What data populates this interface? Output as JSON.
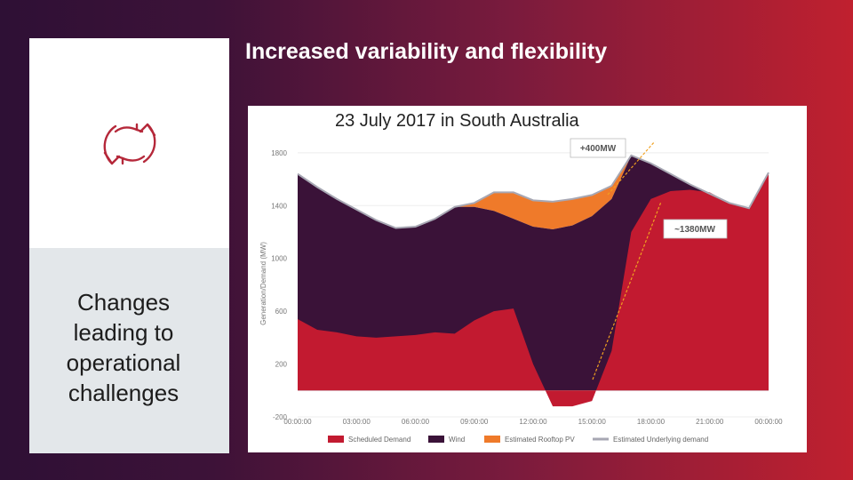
{
  "slide": {
    "title": "Increased variability and flexibility",
    "caption": "Changes\nleading to\noperational\nchallenges",
    "icon": "refresh-cycle-icon",
    "icon_color": "#b5283a"
  },
  "chart_data": {
    "type": "area",
    "subtitle": "23 July 2017 in South Australia",
    "ylabel": "Generation/Demand (MW)",
    "ylim": [
      -200,
      1900
    ],
    "yticks": [
      -200,
      200,
      600,
      1000,
      1400,
      1800
    ],
    "xticks": [
      "00:00:00",
      "03:00:00",
      "06:00:00",
      "09:00:00",
      "12:00:00",
      "15:00:00",
      "18:00:00",
      "21:00:00",
      "00:00:00"
    ],
    "x": [
      "00:00",
      "01:00",
      "02:00",
      "03:00",
      "04:00",
      "05:00",
      "06:00",
      "07:00",
      "08:00",
      "09:00",
      "10:00",
      "11:00",
      "12:00",
      "13:00",
      "14:00",
      "15:00",
      "16:00",
      "17:00",
      "18:00",
      "19:00",
      "20:00",
      "21:00",
      "22:00",
      "23:00",
      "24:00"
    ],
    "series": [
      {
        "name": "Scheduled Demand",
        "color": "#c21a30",
        "values": [
          540,
          460,
          440,
          410,
          400,
          410,
          420,
          440,
          430,
          530,
          600,
          620,
          200,
          -120,
          -120,
          -80,
          300,
          1200,
          1450,
          1510,
          1520,
          1500,
          1420,
          1380,
          1650
        ]
      },
      {
        "name": "Wind",
        "color": "#3a1238",
        "values": [
          1640,
          1540,
          1450,
          1370,
          1290,
          1230,
          1240,
          1300,
          1390,
          1390,
          1360,
          1300,
          1240,
          1220,
          1250,
          1320,
          1450,
          1780,
          1720,
          1640,
          1560,
          1490,
          1420,
          1380,
          1650
        ]
      },
      {
        "name": "Estimated Rooftop PV",
        "color": "#ef7a2a",
        "values": [
          1640,
          1540,
          1450,
          1370,
          1290,
          1230,
          1240,
          1300,
          1390,
          1420,
          1500,
          1500,
          1440,
          1430,
          1450,
          1480,
          1550,
          1780,
          1720,
          1640,
          1560,
          1490,
          1420,
          1380,
          1650
        ]
      },
      {
        "name": "Estimated Underlying demand",
        "color": "#a7a7b3",
        "values": [
          1640,
          1540,
          1450,
          1370,
          1290,
          1230,
          1240,
          1300,
          1390,
          1420,
          1500,
          1500,
          1440,
          1430,
          1450,
          1480,
          1550,
          1780,
          1720,
          1640,
          1560,
          1490,
          1420,
          1380,
          1650
        ]
      }
    ],
    "annotations": [
      {
        "label": "+400MW",
        "color": "#f0a020"
      },
      {
        "label": "~1380MW",
        "color": "#f0a020"
      }
    ],
    "legend_position": "bottom"
  }
}
